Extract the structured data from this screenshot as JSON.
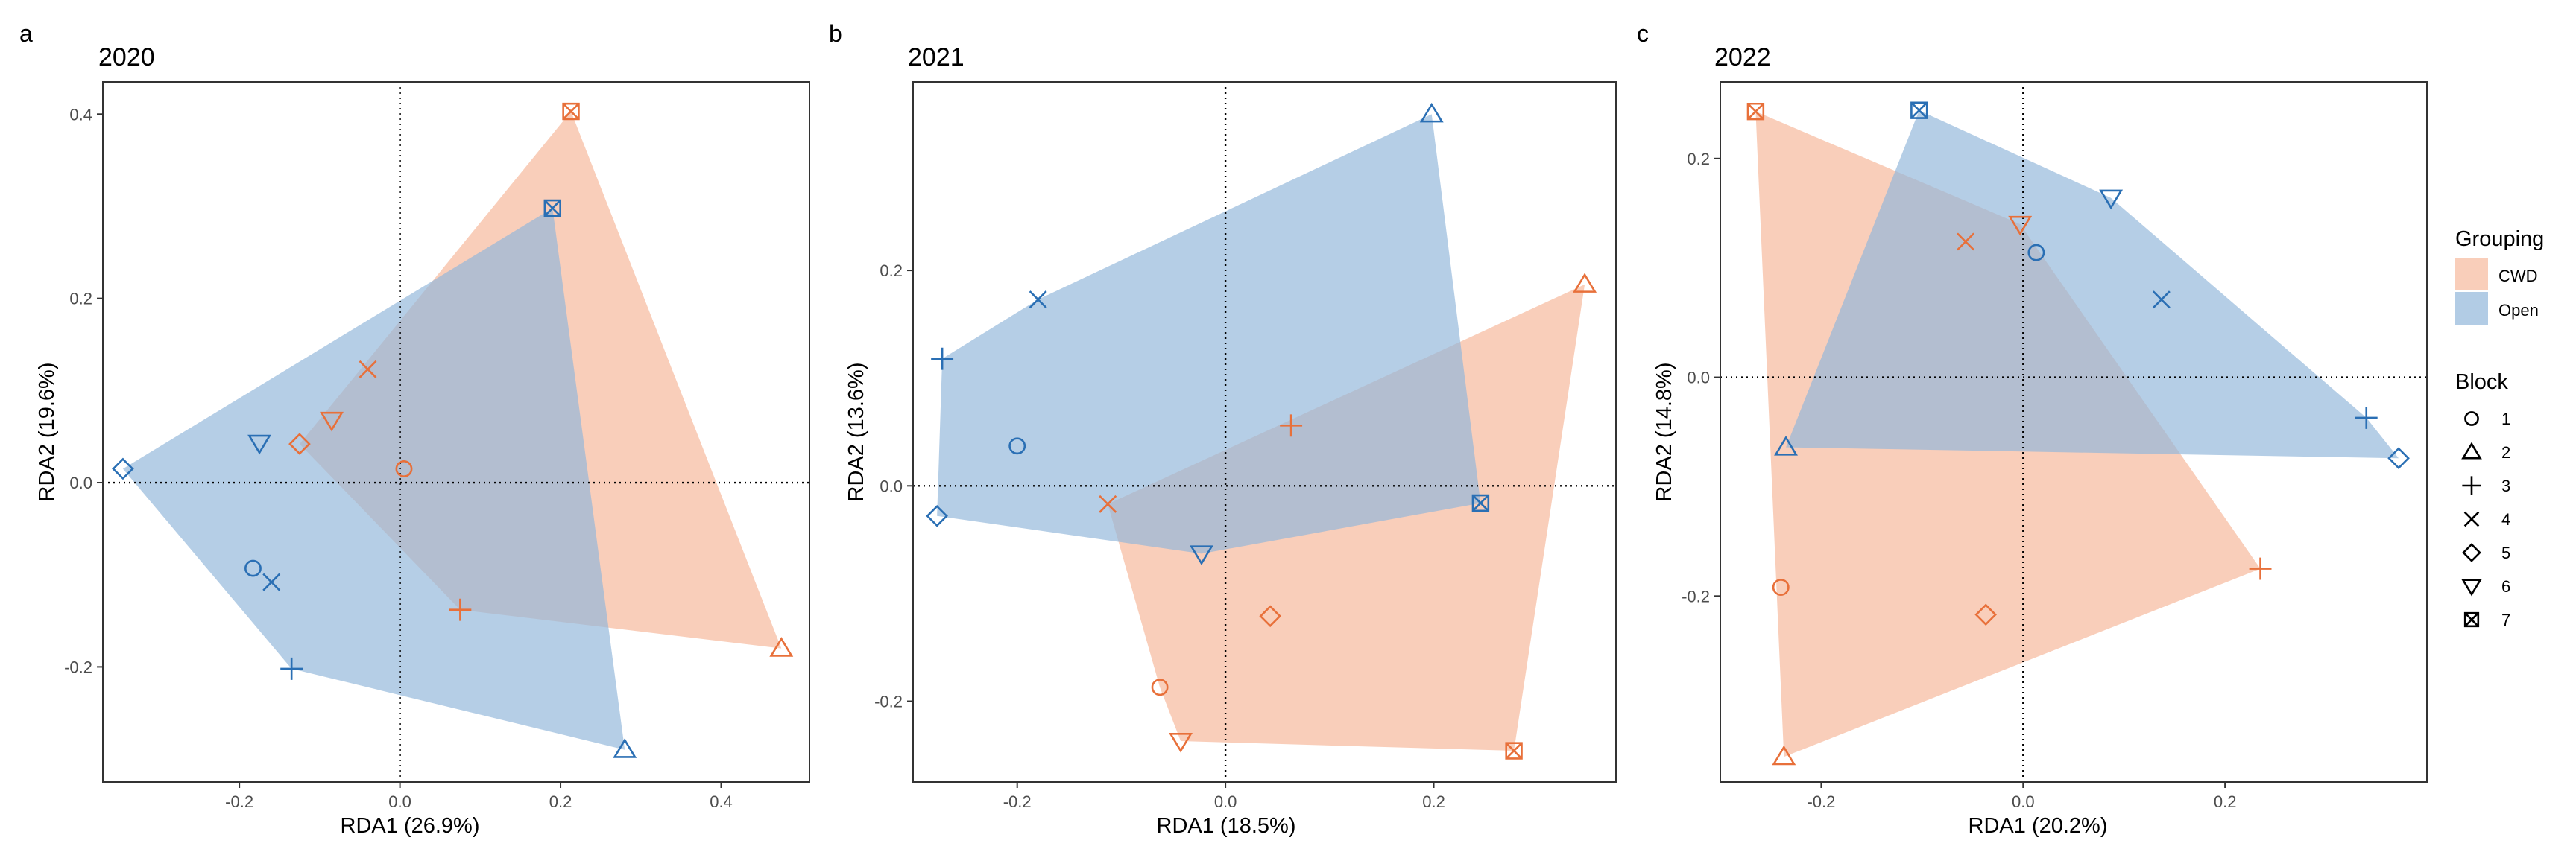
{
  "colors": {
    "CWD": "#E8703A",
    "Open": "#2A6FB4",
    "CWD_fill": "#F4A582",
    "Open_fill": "#92B7DA",
    "overlap": "#9E8E9A"
  },
  "panels": [
    {
      "letter": "a",
      "title": "2020",
      "xlabel": "RDA1 (26.9%)",
      "ylabel": "RDA2 (19.6%)"
    },
    {
      "letter": "b",
      "title": "2021",
      "xlabel": "RDA1 (18.5%)",
      "ylabel": "RDA2 (13.6%)"
    },
    {
      "letter": "c",
      "title": "2022",
      "xlabel": "RDA1 (20.2%)",
      "ylabel": "RDA2 (14.8%)"
    }
  ],
  "legend": {
    "grouping_title": "Grouping",
    "groups": [
      "CWD",
      "Open"
    ],
    "block_title": "Block",
    "blocks": [
      "1",
      "2",
      "3",
      "4",
      "5",
      "6",
      "7"
    ],
    "block_icons": [
      "circle-icon",
      "triangle-icon",
      "plus-icon",
      "cross-icon",
      "diamond-icon",
      "down-triangle-icon",
      "boxed-x-icon"
    ]
  },
  "chart_data": [
    {
      "type": "scatter",
      "title": "2020",
      "xlabel": "RDA1 (26.9%)",
      "ylabel": "RDA2 (19.6%)",
      "xlim": [
        -0.37,
        0.51
      ],
      "ylim": [
        -0.325,
        0.435
      ],
      "xticks": [
        -0.2,
        0.0,
        0.2,
        0.4
      ],
      "xtick_labels": [
        "-0.2",
        "0.0",
        "0.2",
        "0.4"
      ],
      "yticks": [
        -0.2,
        0.0,
        0.2,
        0.4
      ],
      "ytick_labels": [
        "-0.2",
        "0.0",
        "0.2",
        "0.4"
      ],
      "grid": false,
      "reference_lines": {
        "x": 0,
        "y": 0,
        "style": "dotted"
      },
      "series": [
        {
          "name": "CWD",
          "hull": true,
          "points": [
            {
              "block": 1,
              "x": 0.005,
              "y": 0.015
            },
            {
              "block": 2,
              "x": 0.475,
              "y": -0.18
            },
            {
              "block": 3,
              "x": 0.075,
              "y": -0.138
            },
            {
              "block": 4,
              "x": -0.04,
              "y": 0.123
            },
            {
              "block": 5,
              "x": -0.125,
              "y": 0.042
            },
            {
              "block": 6,
              "x": -0.085,
              "y": 0.068
            },
            {
              "block": 7,
              "x": 0.213,
              "y": 0.403
            }
          ]
        },
        {
          "name": "Open",
          "hull": true,
          "points": [
            {
              "block": 1,
              "x": -0.183,
              "y": -0.093
            },
            {
              "block": 2,
              "x": 0.28,
              "y": -0.29
            },
            {
              "block": 3,
              "x": -0.135,
              "y": -0.202
            },
            {
              "block": 4,
              "x": -0.16,
              "y": -0.108
            },
            {
              "block": 5,
              "x": -0.345,
              "y": 0.015
            },
            {
              "block": 6,
              "x": -0.175,
              "y": 0.043
            },
            {
              "block": 7,
              "x": 0.19,
              "y": 0.298
            }
          ]
        }
      ]
    },
    {
      "type": "scatter",
      "title": "2021",
      "xlabel": "RDA1 (18.5%)",
      "ylabel": "RDA2 (13.6%)",
      "xlim": [
        -0.3,
        0.375
      ],
      "ylim": [
        -0.275,
        0.375
      ],
      "xticks": [
        -0.2,
        0.0,
        0.2
      ],
      "xtick_labels": [
        "-0.2",
        "0.0",
        "0.2"
      ],
      "yticks": [
        -0.2,
        0.0,
        0.2
      ],
      "ytick_labels": [
        "-0.2",
        "0.0",
        "0.2"
      ],
      "grid": false,
      "reference_lines": {
        "x": 0,
        "y": 0,
        "style": "dotted"
      },
      "series": [
        {
          "name": "CWD",
          "hull": true,
          "points": [
            {
              "block": 1,
              "x": -0.063,
              "y": -0.187
            },
            {
              "block": 2,
              "x": 0.345,
              "y": 0.187
            },
            {
              "block": 3,
              "x": 0.063,
              "y": 0.056
            },
            {
              "block": 4,
              "x": -0.113,
              "y": -0.017
            },
            {
              "block": 5,
              "x": 0.043,
              "y": -0.121
            },
            {
              "block": 6,
              "x": -0.043,
              "y": -0.237
            },
            {
              "block": 7,
              "x": 0.277,
              "y": -0.246
            }
          ]
        },
        {
          "name": "Open",
          "hull": true,
          "points": [
            {
              "block": 1,
              "x": -0.2,
              "y": 0.037
            },
            {
              "block": 2,
              "x": 0.198,
              "y": 0.345
            },
            {
              "block": 3,
              "x": -0.272,
              "y": 0.118
            },
            {
              "block": 4,
              "x": -0.18,
              "y": 0.173
            },
            {
              "block": 5,
              "x": -0.277,
              "y": -0.028
            },
            {
              "block": 6,
              "x": -0.023,
              "y": -0.063
            },
            {
              "block": 7,
              "x": 0.245,
              "y": -0.016
            }
          ]
        }
      ]
    },
    {
      "type": "scatter",
      "title": "2022",
      "xlabel": "RDA1 (20.2%)",
      "ylabel": "RDA2 (14.8%)",
      "xlim": [
        -0.3,
        0.4
      ],
      "ylim": [
        -0.37,
        0.27
      ],
      "xticks": [
        -0.2,
        0.0,
        0.2
      ],
      "xtick_labels": [
        "-0.2",
        "0.0",
        "0.2"
      ],
      "yticks": [
        -0.2,
        0.0,
        0.2
      ],
      "ytick_labels": [
        "-0.2",
        "0.0",
        "0.2"
      ],
      "grid": false,
      "reference_lines": {
        "x": 0,
        "y": 0,
        "style": "dotted"
      },
      "series": [
        {
          "name": "CWD",
          "hull": true,
          "points": [
            {
              "block": 1,
              "x": -0.24,
              "y": -0.192
            },
            {
              "block": 2,
              "x": -0.237,
              "y": -0.347
            },
            {
              "block": 3,
              "x": 0.235,
              "y": -0.175
            },
            {
              "block": 4,
              "x": -0.057,
              "y": 0.124
            },
            {
              "block": 5,
              "x": -0.037,
              "y": -0.217
            },
            {
              "block": 6,
              "x": -0.003,
              "y": 0.14
            },
            {
              "block": 7,
              "x": -0.265,
              "y": 0.243
            }
          ]
        },
        {
          "name": "Open",
          "hull": true,
          "points": [
            {
              "block": 1,
              "x": 0.013,
              "y": 0.114
            },
            {
              "block": 2,
              "x": -0.235,
              "y": -0.064
            },
            {
              "block": 3,
              "x": 0.34,
              "y": -0.037
            },
            {
              "block": 4,
              "x": 0.137,
              "y": 0.071
            },
            {
              "block": 5,
              "x": 0.372,
              "y": -0.074
            },
            {
              "block": 6,
              "x": 0.087,
              "y": 0.164
            },
            {
              "block": 7,
              "x": -0.103,
              "y": 0.244
            }
          ]
        }
      ]
    }
  ]
}
